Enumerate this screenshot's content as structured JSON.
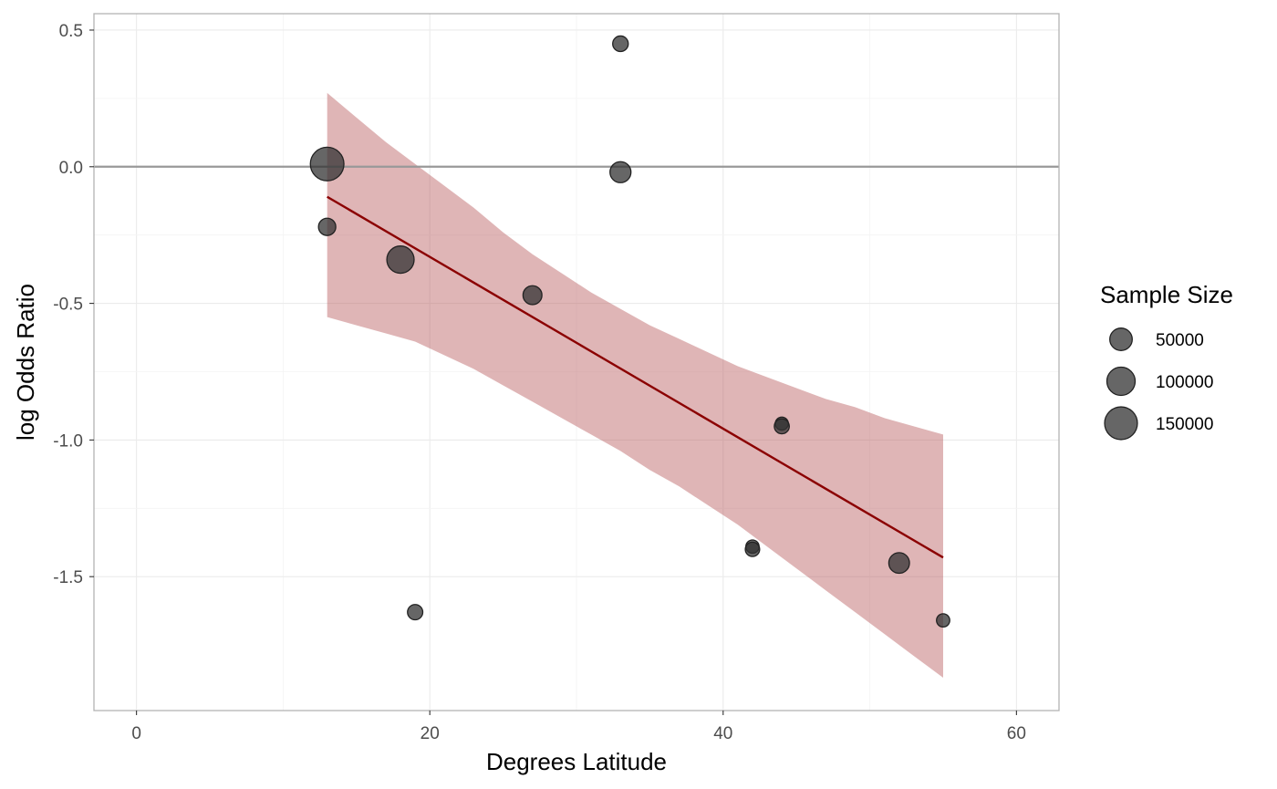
{
  "chart_data": {
    "type": "scatter",
    "xlabel": "Degrees Latitude",
    "ylabel": "log Odds Ratio",
    "xlim": [
      -2.9,
      62.9
    ],
    "ylim": [
      -1.99,
      0.56
    ],
    "x_ticks": [
      0,
      20,
      40,
      60
    ],
    "x_tick_labels": [
      "0",
      "20",
      "40",
      "60"
    ],
    "y_ticks": [
      0.5,
      0.0,
      -0.5,
      -1.0,
      -1.5
    ],
    "y_tick_labels": [
      "0.5",
      "0.0",
      "-0.5",
      "-1.0",
      "-1.5"
    ],
    "grid": true,
    "reference_line": {
      "y": 0,
      "color": "#999999"
    },
    "points": [
      {
        "x": 13,
        "y": 0.01,
        "size": 160000
      },
      {
        "x": 13,
        "y": -0.22,
        "size": 20000
      },
      {
        "x": 18,
        "y": -0.34,
        "size": 90000
      },
      {
        "x": 19,
        "y": -1.63,
        "size": 12000
      },
      {
        "x": 27,
        "y": -0.47,
        "size": 28000
      },
      {
        "x": 33,
        "y": 0.45,
        "size": 13000
      },
      {
        "x": 33,
        "y": -0.02,
        "size": 40000
      },
      {
        "x": 42,
        "y": -1.39,
        "size": 6000
      },
      {
        "x": 42,
        "y": -1.4,
        "size": 9000
      },
      {
        "x": 44,
        "y": -0.94,
        "size": 5500
      },
      {
        "x": 44,
        "y": -0.95,
        "size": 11000
      },
      {
        "x": 52,
        "y": -1.45,
        "size": 38000
      },
      {
        "x": 55,
        "y": -1.66,
        "size": 6000
      }
    ],
    "point_color": "#333333",
    "fit_line": {
      "x": [
        13,
        55
      ],
      "y": [
        -0.11,
        -1.43
      ],
      "color": "#8b0000"
    },
    "confidence_band": {
      "color": "#b85c5e",
      "x": [
        13,
        15,
        17,
        19,
        21,
        23,
        25,
        27,
        29,
        31,
        33,
        35,
        37,
        39,
        41,
        43,
        45,
        47,
        49,
        51,
        53,
        55
      ],
      "upper": [
        0.27,
        0.18,
        0.09,
        0.01,
        -0.07,
        -0.15,
        -0.24,
        -0.32,
        -0.39,
        -0.46,
        -0.52,
        -0.58,
        -0.63,
        -0.68,
        -0.73,
        -0.77,
        -0.81,
        -0.85,
        -0.88,
        -0.92,
        -0.95,
        -0.98
      ],
      "lower": [
        -0.55,
        -0.58,
        -0.61,
        -0.64,
        -0.69,
        -0.74,
        -0.8,
        -0.86,
        -0.92,
        -0.98,
        -1.04,
        -1.11,
        -1.17,
        -1.24,
        -1.31,
        -1.39,
        -1.47,
        -1.55,
        -1.63,
        -1.71,
        -1.79,
        -1.87
      ]
    },
    "legend": {
      "title": "Sample Size",
      "position": "right",
      "entries": [
        {
          "label": "50000",
          "size": 50000
        },
        {
          "label": "100000",
          "size": 100000
        },
        {
          "label": "150000",
          "size": 150000
        }
      ]
    }
  }
}
